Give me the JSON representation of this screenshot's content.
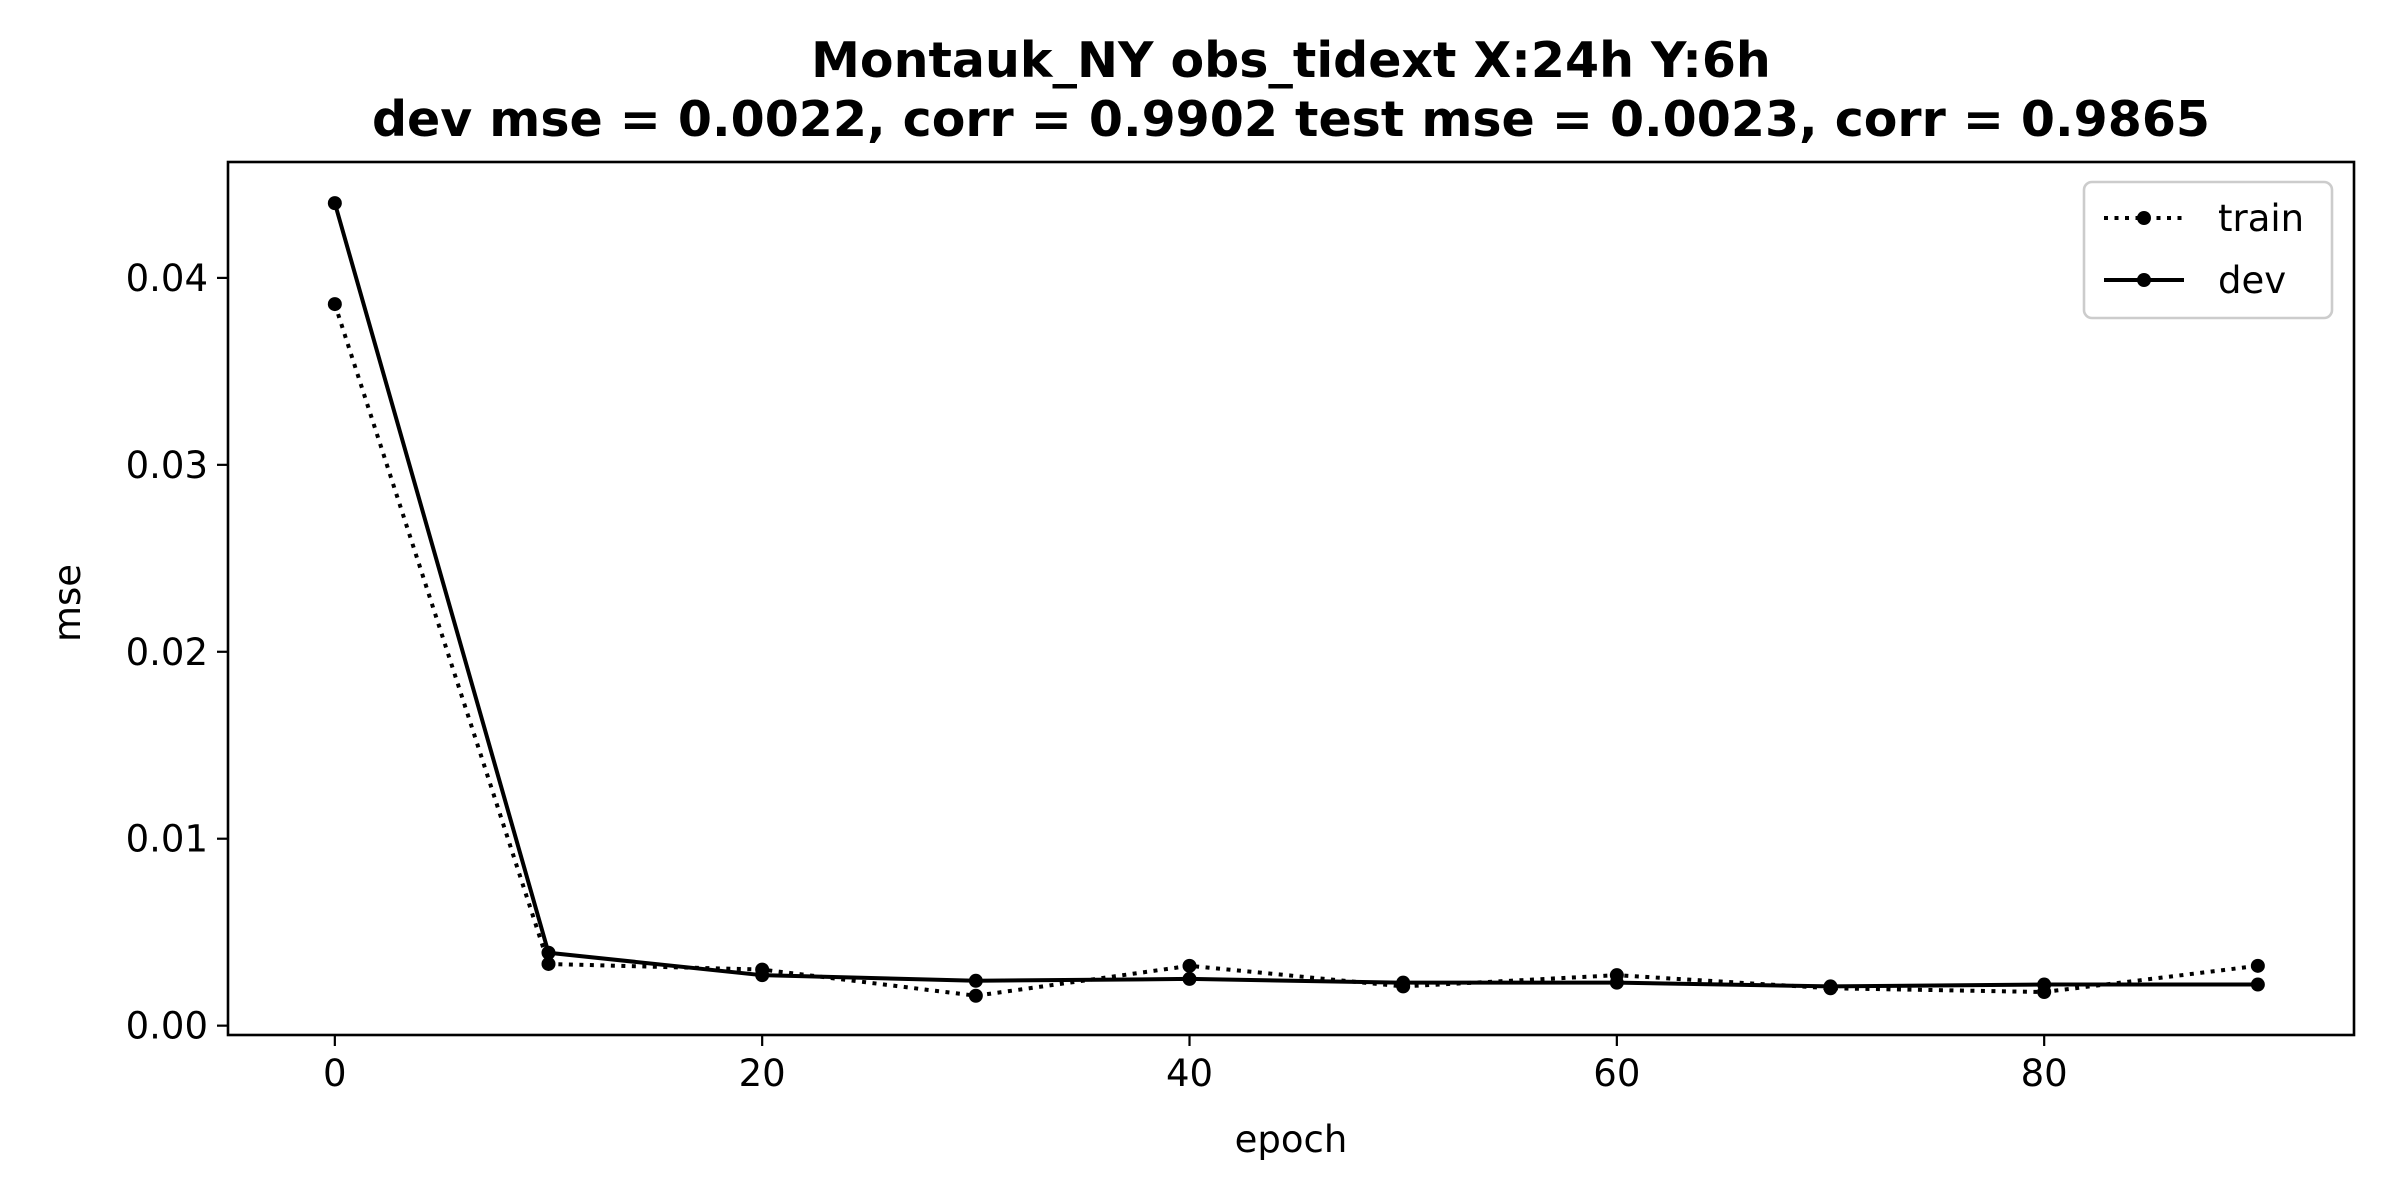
{
  "chart_data": {
    "type": "line",
    "title_lines": [
      "Montauk_NY   obs_tidext   X:24h   Y:6h",
      "dev mse = 0.0022, corr = 0.9902   test mse = 0.0023, corr = 0.9865"
    ],
    "xlabel": "epoch",
    "ylabel": "mse",
    "xlim": [
      -5,
      94.5
    ],
    "ylim": [
      -0.0005,
      0.0462
    ],
    "xticks": [
      0,
      20,
      40,
      60,
      80
    ],
    "xtick_labels": [
      "0",
      "20",
      "40",
      "60",
      "80"
    ],
    "yticks": [
      0.0,
      0.01,
      0.02,
      0.03,
      0.04
    ],
    "ytick_labels": [
      "0.00",
      "0.01",
      "0.02",
      "0.03",
      "0.04"
    ],
    "x": [
      0,
      10,
      20,
      30,
      40,
      50,
      60,
      70,
      80,
      90
    ],
    "series": [
      {
        "name": "train",
        "style": "dotted",
        "color": "#000000",
        "values": [
          0.0386,
          0.0033,
          0.003,
          0.0016,
          0.0032,
          0.0021,
          0.0027,
          0.002,
          0.0018,
          0.0032
        ]
      },
      {
        "name": "dev",
        "style": "solid",
        "color": "#000000",
        "values": [
          0.044,
          0.0039,
          0.0027,
          0.0024,
          0.0025,
          0.0023,
          0.0023,
          0.0021,
          0.0022,
          0.0022
        ]
      }
    ],
    "grid": false,
    "legend_position": "upper right"
  }
}
